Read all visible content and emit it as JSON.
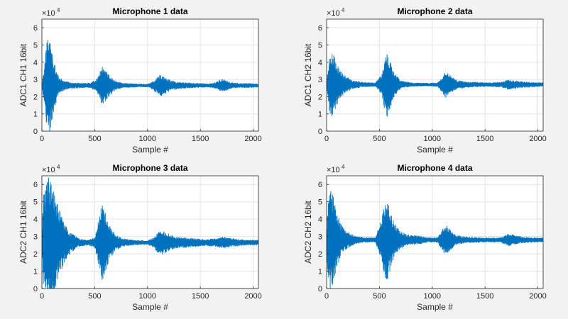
{
  "figure": {
    "background": "#f2f2f2",
    "axes_background": "#ffffff",
    "grid_color": "#e3e3e3",
    "line_color": "#0072bd"
  },
  "chart_data": [
    {
      "type": "line",
      "title": "Microphone 1 data",
      "xlabel": "Sample #",
      "ylabel": "ADC1 CH1 16bit",
      "exponent_label": "×10",
      "exponent_power": "4",
      "xlim": [
        0,
        2050
      ],
      "ylim": [
        0,
        65000
      ],
      "xticks": [
        0,
        500,
        1000,
        1500,
        2000
      ],
      "yticks": [
        0,
        10000,
        20000,
        30000,
        40000,
        50000,
        60000
      ],
      "ytick_labels": [
        "0",
        "1",
        "2",
        "3",
        "4",
        "5",
        "6"
      ],
      "grid": true,
      "baseline": 26500,
      "series": [
        {
          "name": "Microphone 1",
          "envelope": [
            [
              0,
              1000
            ],
            [
              25,
              12000
            ],
            [
              45,
              25000
            ],
            [
              60,
              28500
            ],
            [
              75,
              29500
            ],
            [
              90,
              22000
            ],
            [
              120,
              13000
            ],
            [
              160,
              5000
            ],
            [
              220,
              2500
            ],
            [
              300,
              1800
            ],
            [
              380,
              1500
            ],
            [
              460,
              1500
            ],
            [
              520,
              4000
            ],
            [
              550,
              9000
            ],
            [
              575,
              11500
            ],
            [
              600,
              9500
            ],
            [
              640,
              6000
            ],
            [
              690,
              3000
            ],
            [
              760,
              1500
            ],
            [
              860,
              1200
            ],
            [
              960,
              1000
            ],
            [
              1020,
              1200
            ],
            [
              1060,
              3000
            ],
            [
              1100,
              5500
            ],
            [
              1125,
              6500
            ],
            [
              1160,
              5000
            ],
            [
              1220,
              3000
            ],
            [
              1300,
              2000
            ],
            [
              1400,
              1600
            ],
            [
              1500,
              1300
            ],
            [
              1600,
              1300
            ],
            [
              1650,
              2000
            ],
            [
              1700,
              3800
            ],
            [
              1730,
              3500
            ],
            [
              1780,
              2000
            ],
            [
              1860,
              1500
            ],
            [
              1950,
              1400
            ],
            [
              2050,
              1200
            ]
          ]
        }
      ]
    },
    {
      "type": "line",
      "title": "Microphone 2 data",
      "xlabel": "Sample #",
      "ylabel": "ADC1 CH2 16bit",
      "exponent_label": "×10",
      "exponent_power": "4",
      "xlim": [
        0,
        2050
      ],
      "ylim": [
        0,
        65000
      ],
      "xticks": [
        0,
        500,
        1000,
        1500,
        2000
      ],
      "yticks": [
        0,
        10000,
        20000,
        30000,
        40000,
        50000,
        60000
      ],
      "ytick_labels": [
        "0",
        "1",
        "2",
        "3",
        "4",
        "5",
        "6"
      ],
      "grid": true,
      "baseline": 27000,
      "series": [
        {
          "name": "Microphone 2",
          "envelope": [
            [
              0,
              1000
            ],
            [
              20,
              14000
            ],
            [
              40,
              21000
            ],
            [
              60,
              20000
            ],
            [
              90,
              13000
            ],
            [
              130,
              8000
            ],
            [
              180,
              5000
            ],
            [
              250,
              2500
            ],
            [
              350,
              1500
            ],
            [
              460,
              1200
            ],
            [
              520,
              6000
            ],
            [
              550,
              15000
            ],
            [
              575,
              19000
            ],
            [
              600,
              15000
            ],
            [
              640,
              7000
            ],
            [
              700,
              2500
            ],
            [
              800,
              1200
            ],
            [
              950,
              1000
            ],
            [
              1050,
              1200
            ],
            [
              1100,
              5000
            ],
            [
              1125,
              8000
            ],
            [
              1160,
              6000
            ],
            [
              1220,
              3000
            ],
            [
              1320,
              1800
            ],
            [
              1450,
              1500
            ],
            [
              1550,
              1300
            ],
            [
              1650,
              1500
            ],
            [
              1720,
              3000
            ],
            [
              1760,
              2800
            ],
            [
              1820,
              2000
            ],
            [
              1950,
              1500
            ],
            [
              2050,
              1200
            ]
          ]
        }
      ]
    },
    {
      "type": "line",
      "title": "Microphone 3 data",
      "xlabel": "Sample #",
      "ylabel": "ADC2 CH1 16bit",
      "exponent_label": "×10",
      "exponent_power": "4",
      "xlim": [
        0,
        2050
      ],
      "ylim": [
        0,
        65000
      ],
      "xticks": [
        0,
        500,
        1000,
        1500,
        2000
      ],
      "yticks": [
        0,
        10000,
        20000,
        30000,
        40000,
        50000,
        60000
      ],
      "ytick_labels": [
        "0",
        "1",
        "2",
        "3",
        "4",
        "5",
        "6"
      ],
      "grid": true,
      "baseline": 26500,
      "series": [
        {
          "name": "Microphone 3",
          "envelope": [
            [
              0,
              5000
            ],
            [
              15,
              28000
            ],
            [
              40,
              34000
            ],
            [
              60,
              38000
            ],
            [
              90,
              36000
            ],
            [
              120,
              30000
            ],
            [
              160,
              20000
            ],
            [
              210,
              12000
            ],
            [
              270,
              6000
            ],
            [
              350,
              2500
            ],
            [
              430,
              1500
            ],
            [
              500,
              3000
            ],
            [
              540,
              14000
            ],
            [
              565,
              22000
            ],
            [
              590,
              20000
            ],
            [
              630,
              12000
            ],
            [
              690,
              5000
            ],
            [
              760,
              2500
            ],
            [
              880,
              1500
            ],
            [
              1000,
              1200
            ],
            [
              1060,
              3000
            ],
            [
              1100,
              6500
            ],
            [
              1140,
              7000
            ],
            [
              1190,
              5500
            ],
            [
              1260,
              3500
            ],
            [
              1360,
              3000
            ],
            [
              1450,
              2500
            ],
            [
              1550,
              2000
            ],
            [
              1650,
              2500
            ],
            [
              1720,
              3500
            ],
            [
              1800,
              2500
            ],
            [
              1900,
              1800
            ],
            [
              2050,
              1500
            ]
          ]
        }
      ]
    },
    {
      "type": "line",
      "title": "Microphone 4 data",
      "xlabel": "Sample #",
      "ylabel": "ADC2 CH2 16bit",
      "exponent_label": "×10",
      "exponent_power": "4",
      "xlim": [
        0,
        2050
      ],
      "ylim": [
        0,
        65000
      ],
      "xticks": [
        0,
        500,
        1000,
        1500,
        2000
      ],
      "yticks": [
        0,
        10000,
        20000,
        30000,
        40000,
        50000,
        60000
      ],
      "ytick_labels": [
        "0",
        "1",
        "2",
        "3",
        "4",
        "5",
        "6"
      ],
      "grid": true,
      "baseline": 28000,
      "series": [
        {
          "name": "Microphone 4",
          "envelope": [
            [
              0,
              5000
            ],
            [
              15,
              25000
            ],
            [
              35,
              30000
            ],
            [
              60,
              27000
            ],
            [
              90,
              18000
            ],
            [
              130,
              10000
            ],
            [
              180,
              6000
            ],
            [
              250,
              3000
            ],
            [
              350,
              1500
            ],
            [
              460,
              1500
            ],
            [
              520,
              12000
            ],
            [
              550,
              23000
            ],
            [
              570,
              25000
            ],
            [
              600,
              18000
            ],
            [
              640,
              10000
            ],
            [
              700,
              5000
            ],
            [
              780,
              3000
            ],
            [
              880,
              2500
            ],
            [
              950,
              1500
            ],
            [
              1050,
              1500
            ],
            [
              1100,
              7000
            ],
            [
              1130,
              9000
            ],
            [
              1160,
              6500
            ],
            [
              1220,
              3000
            ],
            [
              1320,
              1800
            ],
            [
              1450,
              1500
            ],
            [
              1550,
              1300
            ],
            [
              1650,
              1500
            ],
            [
              1720,
              3800
            ],
            [
              1780,
              3000
            ],
            [
              1860,
              1800
            ],
            [
              1950,
              1500
            ],
            [
              2050,
              1300
            ]
          ]
        }
      ]
    }
  ]
}
